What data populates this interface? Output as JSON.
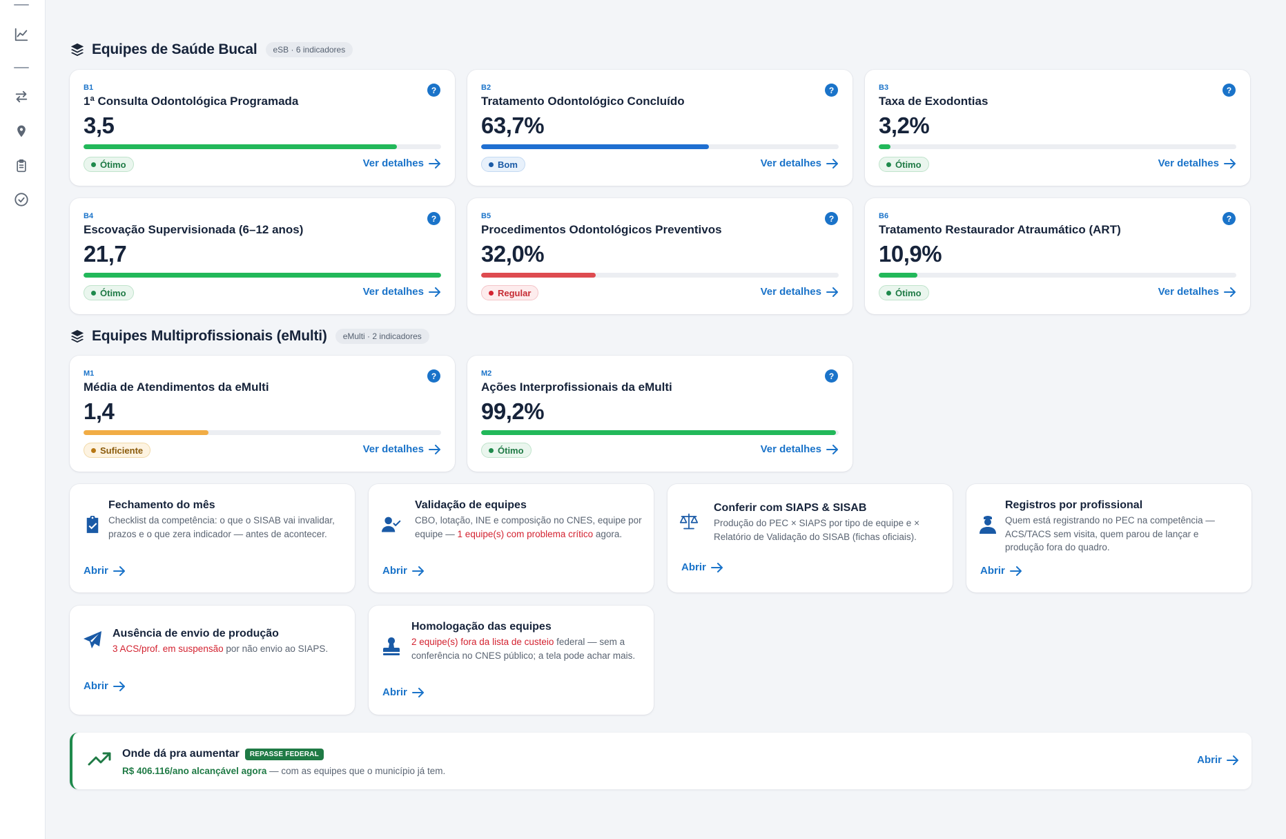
{
  "sections": {
    "esb": {
      "title": "Equipes de Saúde Bucal",
      "pill": "eSB · 6 indicadores"
    },
    "emulti": {
      "title": "Equipes Multiprofissionais (eMulti)",
      "pill": "eMulti · 2 indicadores"
    }
  },
  "details_label": "Ver detalhes",
  "open_label": "Abrir",
  "help_glyph": "?",
  "indicators": [
    {
      "code": "B1",
      "title": "1ª Consulta Odontológica Programada",
      "value": "3,5",
      "progress": 0.876,
      "status": "Ótimo",
      "status_kind": "good"
    },
    {
      "code": "B2",
      "title": "Tratamento Odontológico Concluído",
      "value": "63,7%",
      "progress": 0.637,
      "status": "Bom",
      "status_kind": "blue"
    },
    {
      "code": "B3",
      "title": "Taxa de Exodontias",
      "value": "3,2%",
      "progress": 0.032,
      "status": "Ótimo",
      "status_kind": "good"
    },
    {
      "code": "B4",
      "title": "Escovação Supervisionada (6–12 anos)",
      "value": "21,7",
      "progress": 1.0,
      "status": "Ótimo",
      "status_kind": "good"
    },
    {
      "code": "B5",
      "title": "Procedimentos Odontológicos Preventivos",
      "value": "32,0%",
      "progress": 0.32,
      "status": "Regular",
      "status_kind": "red"
    },
    {
      "code": "B6",
      "title": "Tratamento Restaurador Atraumático (ART)",
      "value": "10,9%",
      "progress": 0.109,
      "status": "Ótimo",
      "status_kind": "good"
    },
    {
      "code": "M1",
      "title": "Média de Atendimentos da eMulti",
      "value": "1,4",
      "progress": 0.35,
      "status": "Suficiente",
      "status_kind": "amber"
    },
    {
      "code": "M2",
      "title": "Ações Interprofissionais da eMulti",
      "value": "99,2%",
      "progress": 0.992,
      "status": "Ótimo",
      "status_kind": "good"
    }
  ],
  "tools": {
    "fechamento": {
      "title": "Fechamento do mês",
      "desc": "Checklist da competência: o que o SISAB vai invalidar, prazos e o que zera indicador — antes de acontecer."
    },
    "validacao": {
      "title": "Validação de equipes",
      "desc_pre": "CBO, lotação, INE e composição no CNES, equipe por equipe — ",
      "desc_hl": "1 equipe(s) com problema crítico",
      "desc_post": " agora."
    },
    "siaps": {
      "title": "Conferir com SIAPS & SISAB",
      "desc": "Produção do PEC × SIAPS por tipo de equipe e × Relatório de Validação do SISAB (fichas oficiais)."
    },
    "registros": {
      "title": "Registros por profissional",
      "desc": "Quem está registrando no PEC na competência — ACS/TACS sem visita, quem parou de lançar e produção fora do quadro."
    },
    "ausencia": {
      "title": "Ausência de envio de produção",
      "desc_hl": "3 ACS/prof. em suspensão",
      "desc_post": " por não envio ao SIAPS."
    },
    "homologacao": {
      "title": "Homologação das equipes",
      "desc_hl": "2 equipe(s) fora da lista de custeio",
      "desc_post": " federal — sem a conferência no CNES público; a tela pode achar mais."
    }
  },
  "banner": {
    "title": "Onde dá pra aumentar",
    "tag": "REPASSE FEDERAL",
    "amount": "R$ 406.116/ano alcançável agora",
    "desc": " — com as equipes que o município já tem."
  },
  "status_colors": {
    "good": {
      "text": "#1f7a45",
      "bg": "#eaf6ee",
      "border": "#bfe3cb",
      "dot": "#1f8a4c",
      "bar": "#22b85a"
    },
    "blue": {
      "text": "#1a5aa6",
      "bg": "#e8f1fb",
      "border": "#c3d9f2",
      "dot": "#1a5aa6",
      "bar": "#1f6fd1"
    },
    "red": {
      "text": "#c62b33",
      "bg": "#fdeced",
      "border": "#f4c4c8",
      "dot": "#d32230",
      "bar": "#de4b50"
    },
    "amber": {
      "text": "#8a5a0a",
      "bg": "#fdf3e1",
      "border": "#f1d9a8",
      "dot": "#b77714",
      "bar": "#f1ac45"
    }
  }
}
